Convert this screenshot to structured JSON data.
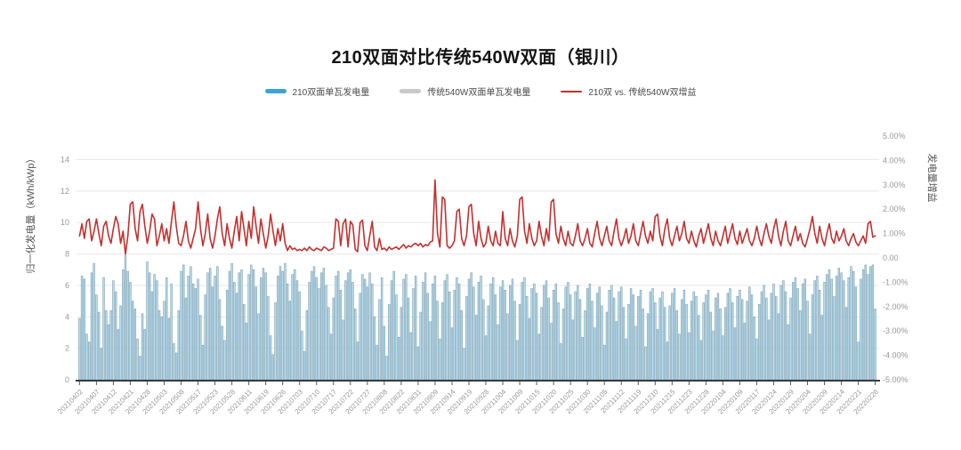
{
  "title": "210双面对比传统540W双面（银川）",
  "legend": {
    "items": [
      {
        "label": "210双面单瓦发电量",
        "color": "#3aa3dc",
        "type": "bar"
      },
      {
        "label": "传统540W双面单瓦发电量",
        "color": "#c9c9c9",
        "type": "bar"
      },
      {
        "label": "210双 vs. 传统540W双增益",
        "color": "#c4302e",
        "type": "line"
      }
    ]
  },
  "chart_data": {
    "type": "bar",
    "subtype": "bar+line dual-axis combo, daily values",
    "title": "210双面对比传统540W双面（银川）",
    "left_axis": {
      "title": "归一化发电量（kWh/kWp）",
      "ticks": [
        0,
        2,
        4,
        6,
        8,
        10,
        12,
        14
      ],
      "min": 0,
      "max": 15.5,
      "unit": "kWh/kWp"
    },
    "right_axis": {
      "title": "发电量增益",
      "tick_labels": [
        "5.00%",
        "4.00%",
        "3.00%",
        "2.00%",
        "1.00%",
        "0.00",
        "-1.00%",
        "-2.00%",
        "-3.00%",
        "-4.00%",
        "-5.00%"
      ],
      "min": -5,
      "max": 5,
      "unit": "%"
    },
    "grid": true,
    "legend_position": "top-center",
    "bar_count": 330,
    "label_every_n_bars": 7,
    "x_labels_shown": [
      "20210402",
      "20210407",
      "20210412",
      "20210421",
      "20210428",
      "20210503",
      "20210508",
      "20210517",
      "20210523",
      "20210528",
      "20210611",
      "20210619",
      "20210626",
      "20210703",
      "20210710",
      "20210717",
      "20210722",
      "20210727",
      "20210808",
      "20210822",
      "20210831",
      "20210909",
      "20210914",
      "20210919",
      "20210928",
      "20211004",
      "20211009",
      "20211015",
      "20211020",
      "20211025",
      "20211030",
      "20211105",
      "20211112",
      "20211119",
      "20211210",
      "20211215",
      "20211223",
      "20211228",
      "20220104",
      "20220109",
      "20220117",
      "20220124",
      "20220129",
      "20220204",
      "20220209",
      "20220214",
      "20220221",
      "20220226"
    ],
    "series": [
      {
        "name": "210双面单瓦发电量",
        "type": "bar",
        "axis": "left",
        "color": "#b9dcec",
        "border_color": "#6f95a9",
        "values": [
          3.9,
          6.6,
          6.4,
          2.9,
          2.4,
          6.8,
          7.4,
          5.4,
          4.3,
          2.0,
          6.5,
          4.4,
          3.5,
          4.4,
          6.3,
          5.6,
          3.2,
          4.7,
          7.0,
          7.9,
          6.9,
          6.2,
          5.0,
          4.5,
          2.6,
          1.5,
          4.2,
          3.2,
          7.5,
          6.8,
          5.6,
          6.7,
          6.3,
          4.4,
          4.0,
          5.0,
          6.5,
          3.9,
          6.1,
          2.3,
          1.7,
          4.4,
          6.9,
          7.3,
          5.2,
          6.6,
          7.2,
          6.1,
          5.8,
          6.4,
          4.1,
          2.2,
          5.4,
          6.8,
          7.1,
          5.9,
          6.6,
          7.2,
          5.1,
          3.4,
          2.5,
          5.7,
          6.9,
          7.4,
          6.2,
          5.5,
          6.8,
          7.0,
          4.8,
          3.6,
          6.7,
          7.3,
          7.0,
          5.9,
          4.2,
          6.5,
          7.1,
          6.8,
          5.3,
          2.8,
          1.6,
          4.9,
          6.6,
          7.2,
          6.9,
          7.4,
          6.1,
          5.0,
          6.7,
          7.0,
          6.3,
          5.6,
          3.1,
          1.8,
          4.4,
          6.2,
          6.9,
          7.2,
          6.5,
          5.8,
          6.8,
          7.1,
          6.0,
          4.6,
          2.9,
          5.2,
          6.6,
          6.9,
          5.7,
          3.8,
          6.3,
          6.8,
          7.0,
          6.2,
          4.5,
          2.4,
          5.5,
          6.7,
          6.4,
          5.9,
          6.8,
          6.1,
          4.0,
          2.2,
          5.1,
          6.5,
          3.4,
          1.5,
          4.8,
          6.3,
          6.9,
          5.4,
          2.7,
          4.6,
          6.4,
          6.7,
          5.2,
          3.0,
          5.8,
          6.6,
          2.1,
          4.3,
          6.2,
          6.8,
          5.5,
          3.7,
          6.1,
          6.6,
          5.0,
          2.6,
          4.9,
          6.3,
          6.7,
          5.6,
          3.3,
          5.7,
          6.5,
          6.1,
          4.4,
          2.0,
          5.3,
          6.4,
          6.8,
          5.9,
          4.1,
          6.2,
          6.6,
          5.1,
          2.8,
          4.7,
          6.1,
          6.5,
          5.4,
          3.5,
          5.9,
          6.3,
          5.7,
          4.2,
          6.0,
          6.4,
          5.0,
          2.5,
          4.8,
          6.2,
          6.5,
          5.3,
          3.9,
          5.8,
          6.1,
          5.5,
          2.9,
          4.6,
          6.0,
          6.3,
          5.2,
          3.6,
          5.7,
          6.1,
          4.9,
          2.3,
          4.5,
          5.9,
          6.2,
          5.4,
          3.8,
          5.6,
          6.0,
          5.1,
          2.7,
          4.4,
          5.8,
          6.1,
          5.0,
          3.3,
          5.5,
          5.9,
          4.7,
          2.2,
          4.3,
          5.7,
          6.0,
          5.2,
          3.7,
          5.6,
          5.9,
          4.6,
          2.6,
          4.8,
          5.8,
          5.4,
          3.4,
          5.3,
          5.7,
          4.5,
          2.1,
          4.2,
          5.6,
          5.8,
          4.9,
          3.2,
          5.2,
          5.6,
          4.6,
          2.4,
          4.7,
          5.5,
          5.8,
          4.4,
          2.9,
          5.1,
          5.7,
          4.8,
          3.0,
          5.0,
          5.6,
          5.3,
          4.1,
          2.5,
          4.9,
          5.4,
          5.7,
          4.3,
          3.1,
          5.2,
          5.5,
          4.5,
          2.8,
          4.6,
          5.5,
          5.8,
          4.9,
          3.3,
          5.3,
          5.7,
          5.1,
          3.6,
          5.0,
          5.9,
          5.4,
          4.0,
          2.6,
          4.8,
          5.6,
          6.0,
          5.2,
          3.8,
          5.5,
          6.1,
          5.3,
          4.2,
          6.0,
          6.3,
          5.6,
          3.5,
          5.2,
          6.2,
          6.5,
          5.8,
          4.4,
          6.1,
          6.4,
          5.0,
          2.9,
          5.4,
          6.3,
          6.6,
          5.7,
          4.1,
          6.2,
          6.7,
          7.0,
          6.4,
          5.3,
          6.6,
          7.1,
          6.8,
          6.3,
          4.6,
          6.5,
          7.2,
          6.9,
          5.9,
          2.4,
          6.4,
          7.0,
          7.3,
          6.7,
          7.2,
          7.3,
          4.5
        ]
      },
      {
        "name": "传统540W双面单瓦发电量",
        "type": "bar",
        "axis": "left",
        "color": "#c9c9c9",
        "visually_hidden_behind": "210双面单瓦发电量"
      },
      {
        "name": "210双 vs. 传统540W双增益",
        "type": "line",
        "axis": "right",
        "color": "#c4302e",
        "values": [
          0.9,
          1.4,
          0.8,
          1.5,
          1.6,
          0.7,
          1.1,
          1.6,
          1.0,
          0.5,
          1.3,
          1.5,
          0.9,
          0.6,
          1.2,
          1.7,
          1.4,
          0.6,
          1.1,
          0.15,
          0.9,
          2.2,
          2.3,
          1.2,
          0.7,
          1.9,
          2.2,
          1.3,
          0.6,
          1.1,
          1.8,
          1.6,
          0.5,
          0.9,
          1.4,
          0.7,
          1.2,
          0.6,
          1.5,
          2.3,
          1.3,
          0.6,
          0.5,
          0.9,
          1.5,
          0.7,
          0.4,
          0.8,
          1.2,
          2.3,
          1.2,
          0.5,
          1.0,
          1.8,
          0.8,
          0.4,
          0.9,
          1.6,
          2.1,
          1.0,
          0.5,
          1.4,
          0.8,
          0.4,
          1.1,
          1.7,
          0.7,
          1.9,
          1.2,
          0.5,
          1.5,
          0.8,
          2.1,
          1.3,
          0.6,
          1.6,
          1.0,
          0.4,
          0.9,
          1.8,
          1.1,
          0.5,
          1.2,
          0.7,
          1.4,
          0.6,
          0.3,
          0.5,
          0.35,
          0.4,
          0.3,
          0.35,
          0.3,
          0.4,
          0.3,
          0.45,
          0.35,
          0.3,
          0.4,
          0.35,
          0.3,
          0.45,
          0.4,
          0.3,
          0.35,
          0.4,
          1.6,
          1.5,
          0.5,
          1.4,
          1.6,
          0.45,
          1.5,
          1.35,
          0.35,
          0.25,
          1.45,
          1.55,
          0.5,
          0.3,
          0.9,
          1.5,
          0.45,
          0.3,
          0.8,
          0.35,
          0.4,
          0.3,
          0.45,
          0.35,
          0.4,
          0.45,
          0.35,
          0.45,
          0.55,
          0.4,
          0.5,
          0.45,
          0.55,
          0.6,
          0.5,
          0.6,
          0.45,
          0.55,
          0.5,
          0.65,
          0.7,
          3.2,
          1.0,
          0.45,
          2.5,
          2.4,
          0.5,
          0.4,
          0.5,
          0.7,
          1.9,
          2.0,
          0.8,
          0.5,
          0.9,
          2.1,
          2.2,
          1.0,
          0.5,
          1.5,
          0.8,
          0.45,
          0.6,
          1.3,
          0.7,
          0.5,
          1.1,
          0.6,
          0.5,
          1.9,
          0.8,
          0.5,
          1.2,
          0.7,
          0.45,
          0.9,
          2.4,
          2.5,
          1.1,
          0.6,
          1.4,
          0.8,
          0.5,
          0.7,
          1.5,
          0.9,
          0.5,
          1.2,
          0.7,
          2.3,
          2.4,
          1.0,
          0.6,
          1.3,
          0.8,
          0.5,
          1.1,
          0.6,
          0.5,
          0.9,
          1.4,
          0.7,
          0.5,
          0.8,
          1.2,
          0.6,
          0.45,
          1.0,
          1.5,
          0.8,
          0.5,
          0.9,
          1.3,
          0.7,
          0.5,
          1.1,
          1.6,
          0.8,
          0.5,
          0.8,
          1.2,
          0.6,
          0.9,
          1.4,
          0.7,
          0.5,
          1.0,
          1.5,
          0.9,
          0.6,
          1.1,
          0.7,
          1.7,
          1.8,
          0.9,
          0.5,
          1.2,
          1.6,
          0.8,
          0.5,
          0.9,
          1.3,
          0.7,
          1.0,
          1.5,
          0.8,
          0.6,
          1.1,
          0.7,
          0.45,
          0.9,
          1.2,
          0.6,
          1.0,
          1.4,
          0.8,
          0.5,
          1.1,
          0.7,
          0.5,
          0.9,
          1.3,
          0.6,
          1.0,
          1.4,
          0.8,
          0.55,
          1.1,
          0.6,
          0.9,
          1.2,
          0.7,
          0.5,
          0.8,
          1.3,
          0.8,
          0.5,
          1.0,
          1.4,
          0.9,
          0.6,
          1.2,
          1.6,
          0.9,
          0.5,
          1.1,
          1.5,
          0.7,
          0.5,
          0.9,
          1.3,
          0.7,
          1.0,
          0.6,
          0.45,
          0.8,
          1.2,
          1.7,
          1.0,
          0.6,
          1.3,
          0.8,
          0.5,
          1.0,
          1.4,
          0.8,
          0.6,
          1.1,
          0.7,
          0.9,
          1.2,
          0.7,
          0.5,
          0.8,
          1.0,
          0.65,
          0.5,
          0.7,
          0.9,
          0.6,
          1.4,
          1.5,
          0.85,
          0.9
        ]
      }
    ]
  }
}
